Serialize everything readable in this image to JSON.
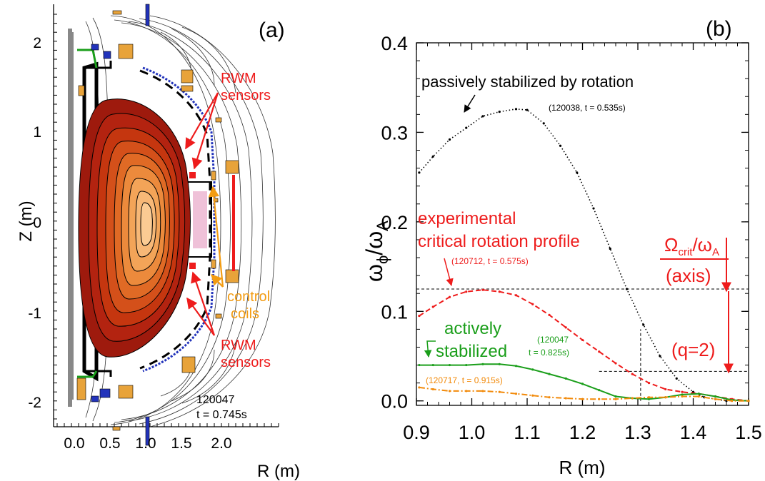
{
  "panel_a": {
    "label": "(a)",
    "xlabel": "R (m)",
    "ylabel": "Z (m)",
    "xticks": [
      "0.0",
      "0.5",
      "1.0",
      "1.5",
      "2.0"
    ],
    "yticks": [
      "2",
      "1",
      "0",
      "-1",
      "-2"
    ],
    "rwm_top": [
      "RWM",
      "sensors"
    ],
    "rwm_bottom": [
      "RWM",
      "sensors"
    ],
    "control": [
      "control",
      "coils"
    ],
    "shot": "120047",
    "time": "t = 0.745s",
    "colors": {
      "red": "#ee1c1c",
      "orange": "#f39c12",
      "blue": "#2233bb",
      "coil": "#e8a33a"
    }
  },
  "panel_b": {
    "label": "(b)",
    "annotations": {
      "passive": "passively stabilized by rotation",
      "passive_shot": "(120038, t = 0.535s)",
      "exp1": "experimental",
      "exp2": "critical rotation profile",
      "exp_shot": "(120712, t = 0.575s)",
      "active1": "actively",
      "active2": "stabilized",
      "active_shot1": "(120047",
      "active_shot2": "t = 0.825s)",
      "orange_shot": "(120717, t = 0.915s)",
      "crit_num_main": "Ω",
      "crit_num_sub": "crit",
      "crit_den_main": "/ω",
      "crit_den_sub": "A",
      "axis": "(axis)",
      "q2": "(q=2)"
    },
    "ylabel_main1": "ω",
    "ylabel_sub1": "ϕ",
    "ylabel_main2": "/ω",
    "ylabel_sub2": "A"
  },
  "chart_data": [
    {
      "type": "line",
      "title": "",
      "xlabel": "R (m)",
      "ylabel": "ω_ϕ/ω_A",
      "xlim": [
        0.9,
        1.5
      ],
      "ylim": [
        -0.005,
        0.4
      ],
      "xticks": [
        "0.9",
        "1.0",
        "1.1",
        "1.2",
        "1.3",
        "1.4",
        "1.5"
      ],
      "yticks": [
        "0.0",
        "0.1",
        "0.2",
        "0.3",
        "0.4"
      ],
      "series": [
        {
          "name": "passively stabilized by rotation",
          "color": "#000000",
          "style": "dotted",
          "x": [
            0.905,
            0.93,
            0.96,
            0.99,
            1.02,
            1.05,
            1.08,
            1.1,
            1.13,
            1.16,
            1.19,
            1.22,
            1.25,
            1.28,
            1.31,
            1.34,
            1.37,
            1.4,
            1.42,
            1.44,
            1.46
          ],
          "y": [
            0.255,
            0.273,
            0.292,
            0.305,
            0.318,
            0.323,
            0.326,
            0.325,
            0.31,
            0.285,
            0.255,
            0.215,
            0.17,
            0.125,
            0.085,
            0.05,
            0.025,
            0.01,
            0.004,
            0.002,
            0.0
          ]
        },
        {
          "name": "experimental critical rotation profile",
          "color": "#ee1c1c",
          "style": "dashed",
          "x": [
            0.905,
            0.93,
            0.96,
            0.99,
            1.02,
            1.05,
            1.08,
            1.11,
            1.14,
            1.17,
            1.2,
            1.23,
            1.26,
            1.29,
            1.32,
            1.35,
            1.38,
            1.41,
            1.44,
            1.47,
            1.5
          ],
          "y": [
            0.095,
            0.105,
            0.116,
            0.122,
            0.124,
            0.122,
            0.118,
            0.108,
            0.096,
            0.082,
            0.068,
            0.055,
            0.042,
            0.03,
            0.02,
            0.013,
            0.01,
            0.008,
            0.005,
            0.002,
            0.0
          ]
        },
        {
          "name": "actively stabilized",
          "color": "#1a9e1a",
          "style": "solid",
          "x": [
            0.905,
            0.93,
            0.96,
            0.99,
            1.02,
            1.05,
            1.08,
            1.11,
            1.14,
            1.17,
            1.2,
            1.23,
            1.26,
            1.29,
            1.32,
            1.35,
            1.38,
            1.41,
            1.44,
            1.47,
            1.5
          ],
          "y": [
            0.04,
            0.04,
            0.04,
            0.04,
            0.041,
            0.041,
            0.039,
            0.035,
            0.03,
            0.025,
            0.019,
            0.012,
            0.005,
            0.003,
            0.002,
            0.004,
            0.007,
            0.008,
            0.005,
            0.001,
            0.0
          ]
        },
        {
          "name": "(120717, t = 0.915s)",
          "color": "#f28a0a",
          "style": "dashdot",
          "x": [
            0.905,
            0.93,
            0.96,
            0.99,
            1.02,
            1.05,
            1.08,
            1.11,
            1.14,
            1.17,
            1.2,
            1.23,
            1.26,
            1.29,
            1.32,
            1.35,
            1.38,
            1.41,
            1.44,
            1.47,
            1.5
          ],
          "y": [
            0.015,
            0.013,
            0.011,
            0.011,
            0.011,
            0.01,
            0.008,
            0.006,
            0.004,
            0.003,
            0.002,
            0.002,
            0.002,
            0.003,
            0.004,
            0.004,
            0.005,
            0.005,
            0.002,
            0.0,
            0.0
          ]
        }
      ],
      "reference_lines": [
        {
          "kind": "horizontal",
          "y": 0.125,
          "x": [
            0.9,
            1.5
          ],
          "style": "dashed"
        },
        {
          "kind": "horizontal",
          "y": 0.033,
          "x": [
            1.23,
            1.5
          ],
          "style": "dashed"
        },
        {
          "kind": "vertical",
          "x": 1.305,
          "y": [
            0.0,
            0.08
          ],
          "style": "dashed"
        }
      ]
    }
  ]
}
